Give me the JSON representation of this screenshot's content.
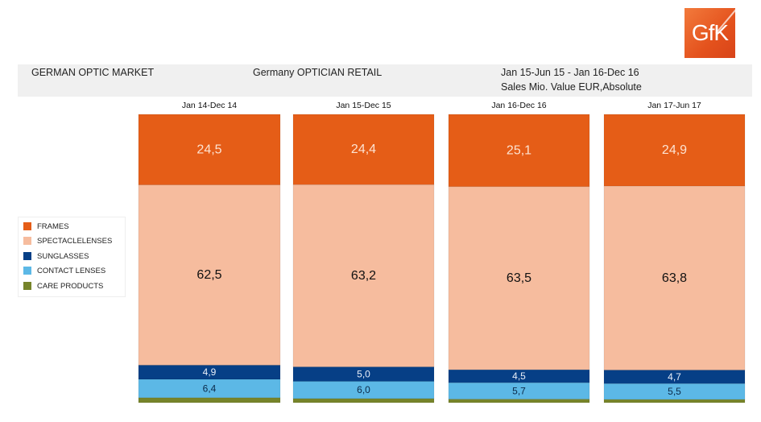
{
  "logo": {
    "text": "GfK"
  },
  "header": {
    "market": "GERMAN OPTIC MARKET",
    "channel": "Germany OPTICIAN RETAIL",
    "period": "Jan 15-Jun 15 - Jan 16-Dec 16",
    "measure": "Sales Mio. Value EUR,Absolute"
  },
  "colors": {
    "frames": "#e55d17",
    "spectaclelenses": "#f6bc9e",
    "sunglasses": "#063f86",
    "contact_lenses": "#5cb8e6",
    "care_products": "#76842a"
  },
  "chart_data": {
    "type": "bar",
    "stacked": true,
    "normalized": true,
    "title": "GERMAN OPTIC MARKET",
    "subtitle": "Sales Mio. Value EUR,Absolute",
    "categories": [
      "Jan 14-Dec 14",
      "Jan 15-Dec 15",
      "Jan 16-Dec 16",
      "Jan 17-Jun 17"
    ],
    "series": [
      {
        "name": "FRAMES",
        "values": [
          24.5,
          24.4,
          25.1,
          24.9
        ],
        "labels": [
          "24,5",
          "24,4",
          "25,1",
          "24,9"
        ]
      },
      {
        "name": "SPECTACLELENSES",
        "values": [
          62.5,
          63.2,
          63.5,
          63.8
        ],
        "labels": [
          "62,5",
          "63,2",
          "63,5",
          "63,8"
        ]
      },
      {
        "name": "SUNGLASSES",
        "values": [
          4.9,
          5.0,
          4.5,
          4.7
        ],
        "labels": [
          "4,9",
          "5,0",
          "4,5",
          "4,7"
        ]
      },
      {
        "name": "CONTACT LENSES",
        "values": [
          6.4,
          6.0,
          5.7,
          5.5
        ],
        "labels": [
          "6,4",
          "6,0",
          "5,7",
          "5,5"
        ]
      },
      {
        "name": "CARE PRODUCTS",
        "values": [
          1.7,
          1.4,
          1.2,
          1.1
        ],
        "labels": []
      }
    ],
    "ylim": [
      0,
      100
    ],
    "grid": false,
    "legend": "left"
  }
}
